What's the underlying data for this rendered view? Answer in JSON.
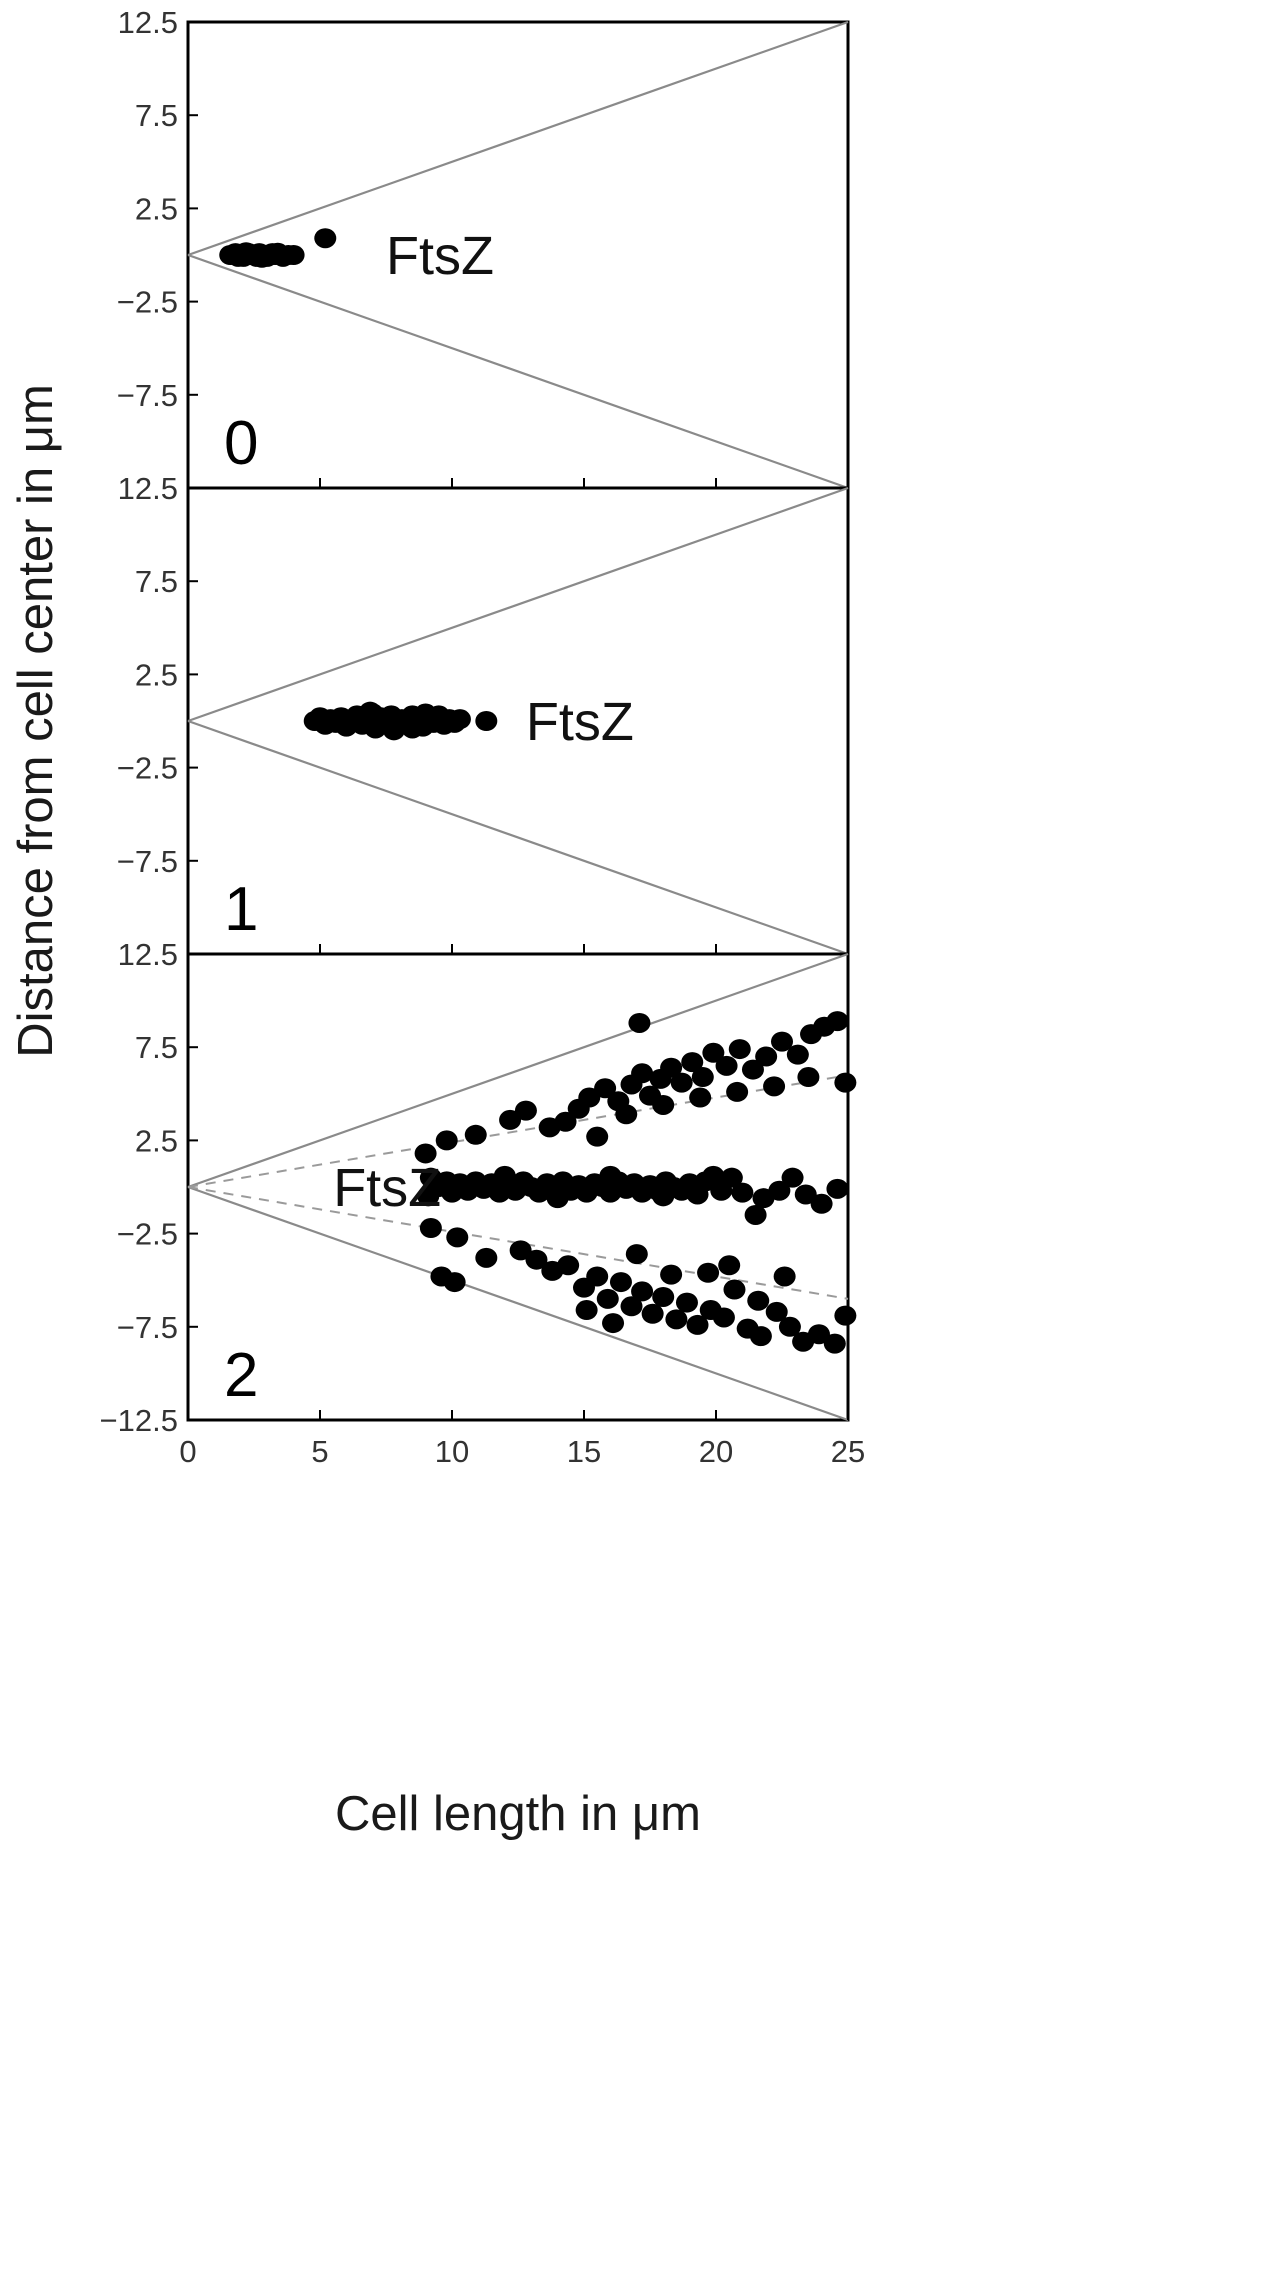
{
  "colors": {
    "frame": "#000000",
    "boundary": "#8a8a8a",
    "dashed": "#9a9a9a",
    "dots": "#000000",
    "text": "#1a1a1a"
  },
  "chart_data": {
    "type": "scatter",
    "xlabel": "Cell length in μm",
    "ylabel": "Distance from cell center in μm",
    "xlim": [
      0,
      25
    ],
    "ylim": [
      -12.5,
      12.5
    ],
    "x_ticks": [
      "0",
      "5",
      "10",
      "15",
      "20",
      "25"
    ],
    "y_ticks": [
      "12.5",
      "7.5",
      "2.5",
      "−2.5",
      "−7.5",
      "12.5"
    ],
    "y_ticks_bottom_panel": [
      "12.5",
      "7.5",
      "2.5",
      "−2.5",
      "−7.5",
      "−12.5"
    ],
    "grid": false,
    "panels": [
      {
        "label": "0",
        "series_label": "FtsZ",
        "series_label_at": [
          7.5,
          0
        ],
        "boundary_lines": [
          {
            "style": "solid",
            "points": [
              [
                0,
                0
              ],
              [
                25,
                12.5
              ]
            ]
          },
          {
            "style": "solid",
            "points": [
              [
                0,
                0
              ],
              [
                25,
                -12.5
              ]
            ]
          }
        ],
        "points": [
          [
            1.6,
            0
          ],
          [
            1.8,
            0.1
          ],
          [
            2.0,
            0
          ],
          [
            2.1,
            -0.1
          ],
          [
            2.3,
            0.1
          ],
          [
            2.4,
            0
          ],
          [
            2.6,
            -0.1
          ],
          [
            2.7,
            0.1
          ],
          [
            2.9,
            0
          ],
          [
            3.0,
            -0.1
          ],
          [
            3.2,
            0.1
          ],
          [
            3.3,
            0
          ],
          [
            3.5,
            0
          ],
          [
            3.6,
            -0.1
          ],
          [
            3.8,
            0
          ],
          [
            4.0,
            0
          ],
          [
            2.2,
            0.15
          ],
          [
            2.8,
            -0.15
          ],
          [
            3.4,
            0.12
          ],
          [
            1.9,
            -0.1
          ],
          [
            5.2,
            0.9
          ]
        ]
      },
      {
        "label": "1",
        "series_label": "FtsZ",
        "series_label_at": [
          12.8,
          0
        ],
        "boundary_lines": [
          {
            "style": "solid",
            "points": [
              [
                0,
                0
              ],
              [
                25,
                12.5
              ]
            ]
          },
          {
            "style": "solid",
            "points": [
              [
                0,
                0
              ],
              [
                25,
                -12.5
              ]
            ]
          }
        ],
        "points": [
          [
            4.8,
            0
          ],
          [
            5.0,
            0.2
          ],
          [
            5.2,
            -0.2
          ],
          [
            5.4,
            0.1
          ],
          [
            5.6,
            -0.1
          ],
          [
            5.8,
            0.2
          ],
          [
            6.0,
            -0.3
          ],
          [
            6.2,
            0.1
          ],
          [
            6.4,
            0.3
          ],
          [
            6.6,
            -0.2
          ],
          [
            6.8,
            0
          ],
          [
            7.0,
            0.4
          ],
          [
            7.1,
            -0.4
          ],
          [
            7.3,
            0.2
          ],
          [
            7.5,
            -0.1
          ],
          [
            7.7,
            0.3
          ],
          [
            7.9,
            -0.3
          ],
          [
            8.1,
            0.1
          ],
          [
            8.3,
            -0.2
          ],
          [
            8.5,
            0.3
          ],
          [
            8.7,
            0
          ],
          [
            8.9,
            -0.3
          ],
          [
            9.1,
            0.2
          ],
          [
            9.3,
            -0.1
          ],
          [
            9.5,
            0.3
          ],
          [
            9.7,
            -0.2
          ],
          [
            9.9,
            0.1
          ],
          [
            10.1,
            -0.1
          ],
          [
            10.3,
            0.1
          ],
          [
            5.5,
            0
          ],
          [
            6.5,
            0
          ],
          [
            7.5,
            0.1
          ],
          [
            8.5,
            -0.4
          ],
          [
            9.0,
            0.4
          ],
          [
            6.9,
            0.5
          ],
          [
            7.8,
            -0.5
          ],
          [
            11.3,
            0
          ]
        ]
      },
      {
        "label": "2",
        "series_label": "FtsZ",
        "series_label_at": [
          5.5,
          0
        ],
        "boundary_lines": [
          {
            "style": "solid",
            "points": [
              [
                0,
                0
              ],
              [
                25,
                12.5
              ]
            ]
          },
          {
            "style": "solid",
            "points": [
              [
                0,
                0
              ],
              [
                25,
                -12.5
              ]
            ]
          },
          {
            "style": "dashed",
            "points": [
              [
                0,
                0
              ],
              [
                25,
                6.0
              ]
            ]
          },
          {
            "style": "dashed",
            "points": [
              [
                0,
                0
              ],
              [
                25,
                -6.0
              ]
            ]
          }
        ],
        "points": [
          [
            9.0,
            1.8
          ],
          [
            9.2,
            0.5
          ],
          [
            9.1,
            -0.5
          ],
          [
            9.5,
            0
          ],
          [
            9.8,
            0.3
          ],
          [
            10.0,
            -0.3
          ],
          [
            10.3,
            0.2
          ],
          [
            10.6,
            -0.2
          ],
          [
            10.9,
            0.3
          ],
          [
            11.2,
            -0.1
          ],
          [
            11.5,
            0.2
          ],
          [
            11.8,
            -0.3
          ],
          [
            12.1,
            0.1
          ],
          [
            12.4,
            -0.2
          ],
          [
            12.7,
            0.3
          ],
          [
            13.0,
            0
          ],
          [
            13.3,
            -0.3
          ],
          [
            13.6,
            0.2
          ],
          [
            13.9,
            -0.1
          ],
          [
            14.2,
            0.3
          ],
          [
            14.5,
            -0.2
          ],
          [
            14.8,
            0.1
          ],
          [
            15.1,
            -0.3
          ],
          [
            15.4,
            0.2
          ],
          [
            15.7,
            0
          ],
          [
            16.0,
            -0.3
          ],
          [
            16.3,
            0.3
          ],
          [
            16.6,
            -0.1
          ],
          [
            16.9,
            0.2
          ],
          [
            17.2,
            -0.3
          ],
          [
            17.5,
            0.1
          ],
          [
            17.8,
            -0.2
          ],
          [
            18.1,
            0.3
          ],
          [
            18.4,
            0
          ],
          [
            18.7,
            -0.2
          ],
          [
            19.0,
            0.2
          ],
          [
            19.3,
            -0.4
          ],
          [
            19.6,
            0.3
          ],
          [
            19.9,
            0.6
          ],
          [
            20.2,
            -0.2
          ],
          [
            20.6,
            0.5
          ],
          [
            21.0,
            -0.3
          ],
          [
            21.5,
            -1.5
          ],
          [
            21.8,
            -0.6
          ],
          [
            22.4,
            -0.2
          ],
          [
            22.9,
            0.5
          ],
          [
            23.4,
            -0.4
          ],
          [
            24.0,
            -0.9
          ],
          [
            24.6,
            -0.1
          ],
          [
            12.0,
            0.6
          ],
          [
            14.0,
            -0.6
          ],
          [
            16.0,
            0.6
          ],
          [
            18.0,
            -0.5
          ],
          [
            9.8,
            2.5
          ],
          [
            10.9,
            2.8
          ],
          [
            12.2,
            3.6
          ],
          [
            12.8,
            4.1
          ],
          [
            13.7,
            3.2
          ],
          [
            14.3,
            3.5
          ],
          [
            14.8,
            4.2
          ],
          [
            15.2,
            4.8
          ],
          [
            15.8,
            5.3
          ],
          [
            16.3,
            4.6
          ],
          [
            16.8,
            5.5
          ],
          [
            17.2,
            6.1
          ],
          [
            17.5,
            4.9
          ],
          [
            17.9,
            5.8
          ],
          [
            18.3,
            6.4
          ],
          [
            18.7,
            5.6
          ],
          [
            19.1,
            6.7
          ],
          [
            19.5,
            5.9
          ],
          [
            19.9,
            7.2
          ],
          [
            20.4,
            6.5
          ],
          [
            20.9,
            7.4
          ],
          [
            21.4,
            6.3
          ],
          [
            21.9,
            7.0
          ],
          [
            22.5,
            7.8
          ],
          [
            23.1,
            7.1
          ],
          [
            23.6,
            8.2
          ],
          [
            24.1,
            8.6
          ],
          [
            24.6,
            8.9
          ],
          [
            24.9,
            5.6
          ],
          [
            17.1,
            8.8
          ],
          [
            15.5,
            2.7
          ],
          [
            16.6,
            3.9
          ],
          [
            18.0,
            4.4
          ],
          [
            19.4,
            4.8
          ],
          [
            20.8,
            5.1
          ],
          [
            22.2,
            5.4
          ],
          [
            23.5,
            5.9
          ],
          [
            9.2,
            -2.2
          ],
          [
            9.6,
            -4.8
          ],
          [
            10.2,
            -2.7
          ],
          [
            10.1,
            -5.1
          ],
          [
            11.3,
            -3.8
          ],
          [
            12.6,
            -3.4
          ],
          [
            13.2,
            -3.9
          ],
          [
            13.8,
            -4.5
          ],
          [
            14.4,
            -4.2
          ],
          [
            15.0,
            -5.4
          ],
          [
            15.5,
            -4.8
          ],
          [
            15.9,
            -6.0
          ],
          [
            16.4,
            -5.1
          ],
          [
            16.8,
            -6.4
          ],
          [
            17.2,
            -5.6
          ],
          [
            17.6,
            -6.8
          ],
          [
            18.0,
            -5.9
          ],
          [
            18.5,
            -7.1
          ],
          [
            18.9,
            -6.2
          ],
          [
            19.3,
            -7.4
          ],
          [
            19.8,
            -6.6
          ],
          [
            20.3,
            -7.0
          ],
          [
            20.7,
            -5.5
          ],
          [
            21.2,
            -7.6
          ],
          [
            21.7,
            -8.0
          ],
          [
            22.3,
            -6.7
          ],
          [
            22.8,
            -7.5
          ],
          [
            23.3,
            -8.3
          ],
          [
            23.9,
            -7.9
          ],
          [
            24.5,
            -8.4
          ],
          [
            24.9,
            -6.9
          ],
          [
            15.1,
            -6.6
          ],
          [
            16.1,
            -7.3
          ],
          [
            17.0,
            -3.6
          ],
          [
            18.3,
            -4.7
          ],
          [
            19.7,
            -4.6
          ],
          [
            20.5,
            -4.2
          ],
          [
            21.6,
            -6.1
          ],
          [
            22.6,
            -4.8
          ]
        ]
      }
    ]
  }
}
